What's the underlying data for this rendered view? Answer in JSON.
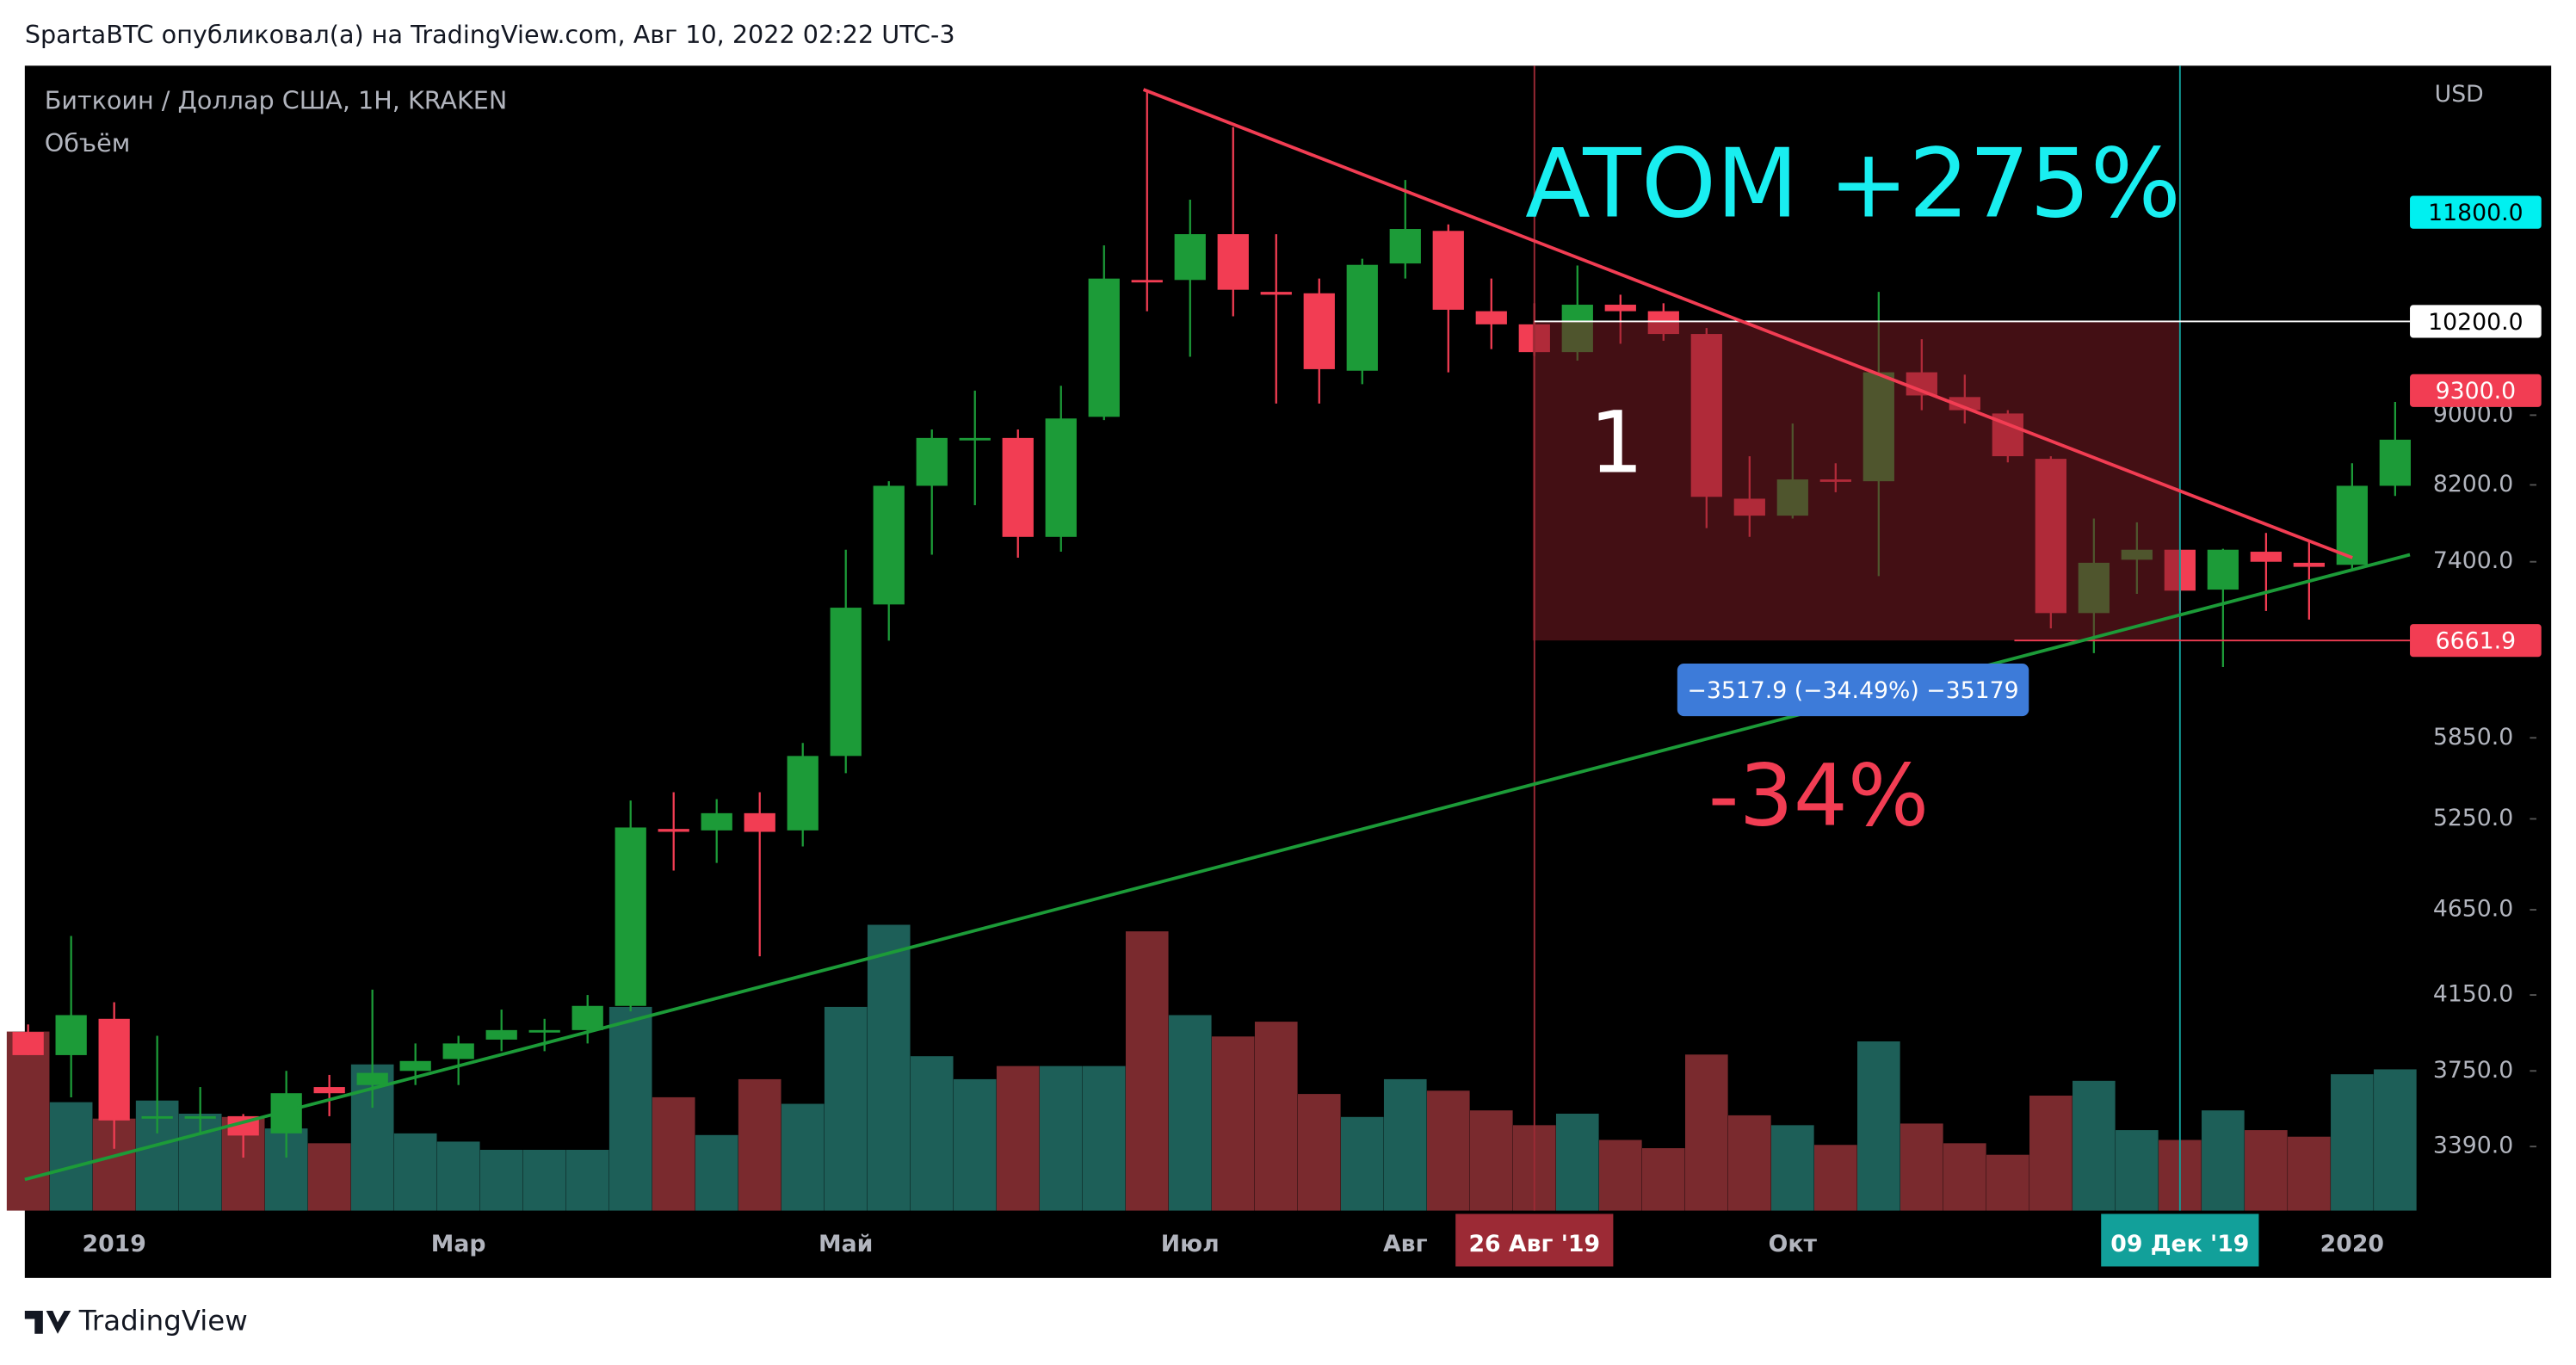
{
  "header": "SpartaBTC опубликовал(а) на TradingView.com, Авг 10, 2022 02:22 UTC-3",
  "footer": "TradingView",
  "chart_data": {
    "type": "candlestick",
    "title": "Биткоин / Доллар США, 1Н, KRAKEN",
    "volume_label": "Объём",
    "y_axis_label": "USD",
    "log_scale": true,
    "ylim": [
      3112,
      14350
    ],
    "yticks": [
      {
        "value": 3390,
        "label": "3390.0"
      },
      {
        "value": 3750,
        "label": "3750.0"
      },
      {
        "value": 4150,
        "label": "4150.0"
      },
      {
        "value": 4650,
        "label": "4650.0"
      },
      {
        "value": 5250,
        "label": "5250.0"
      },
      {
        "value": 5850,
        "label": "5850.0"
      },
      {
        "value": 7400,
        "label": "7400.0"
      },
      {
        "value": 8200,
        "label": "8200.0"
      },
      {
        "value": 9000,
        "label": "9000.0"
      }
    ],
    "categories": [
      null,
      null,
      "2019",
      null,
      null,
      null,
      null,
      null,
      null,
      null,
      "Мар",
      null,
      null,
      null,
      null,
      null,
      null,
      null,
      null,
      "Май",
      null,
      null,
      null,
      null,
      null,
      null,
      null,
      "Июл",
      null,
      null,
      null,
      null,
      "Авг",
      null,
      null,
      "26 Авг '19",
      null,
      null,
      null,
      null,
      null,
      "Окт",
      null,
      null,
      null,
      null,
      null,
      null,
      null,
      null,
      "09 Дек '19",
      null,
      null,
      null,
      "2020",
      null
    ],
    "category_highlights": {
      "35": "#9c2a35",
      "50": "#12a09a"
    },
    "up_color": "#1c9b38",
    "down_color": "#f23d53",
    "volume_up_color": "#1d5f58",
    "volume_down_color": "#7a2a2e",
    "open": [
      3950,
      3830,
      4020,
      3520,
      3530,
      3530,
      3450,
      3670,
      3680,
      3750,
      3810,
      3910,
      3950,
      3960,
      4090,
      5180,
      5170,
      5290,
      5170,
      5710,
      6990,
      8190,
      8730,
      8730,
      7650,
      8980,
      10780,
      10780,
      11460,
      10610,
      10590,
      9550,
      11020,
      11510,
      10340,
      10160,
      9790,
      10430,
      10340,
      10030,
      8050,
      7870,
      8260,
      8240,
      9530,
      9220,
      9020,
      8490,
      6910,
      7420,
      7520,
      7130,
      7500,
      7390,
      7370,
      8190
    ],
    "high": [
      3990,
      4490,
      4110,
      3930,
      3670,
      3540,
      3750,
      3730,
      4180,
      3890,
      3930,
      4070,
      4020,
      4150,
      5380,
      5440,
      5390,
      5440,
      5810,
      7520,
      8240,
      8830,
      9300,
      8830,
      9360,
      11290,
      13900,
      12000,
      13220,
      11460,
      10800,
      11090,
      12320,
      11610,
      10800,
      10450,
      10990,
      10570,
      10450,
      10110,
      8520,
      8900,
      8440,
      10610,
      9960,
      9500,
      9060,
      8520,
      7840,
      7800,
      7520,
      7530,
      7690,
      7610,
      8440,
      9160
    ],
    "low": [
      3830,
      3620,
      3380,
      3450,
      3450,
      3340,
      3340,
      3530,
      3570,
      3680,
      3680,
      3850,
      3850,
      3890,
      4060,
      4900,
      4950,
      4370,
      5060,
      5580,
      6660,
      7470,
      7980,
      7440,
      7500,
      8940,
      10340,
      9730,
      10270,
      9140,
      9140,
      9380,
      10800,
      9530,
      9830,
      9740,
      9680,
      9900,
      9940,
      7740,
      7650,
      7840,
      8120,
      7260,
      9060,
      8900,
      8450,
      6770,
      6550,
      7090,
      6930,
      6430,
      6930,
      6850,
      7330,
      8080
    ],
    "close": [
      3830,
      4040,
      3510,
      3530,
      3530,
      3440,
      3640,
      3640,
      3740,
      3800,
      3890,
      3960,
      3960,
      4090,
      5190,
      5160,
      5290,
      5160,
      5710,
      6960,
      8190,
      8730,
      8730,
      7650,
      8960,
      10800,
      10750,
      11460,
      10640,
      10570,
      9570,
      11000,
      11540,
      10360,
      10160,
      9790,
      10430,
      10340,
      10030,
      8070,
      7870,
      8260,
      8240,
      9530,
      9240,
      9060,
      8520,
      6910,
      7390,
      7520,
      7120,
      7520,
      7400,
      7350,
      8190,
      8710
    ],
    "volume": [
      109,
      66,
      56,
      67,
      59,
      57,
      50,
      41,
      89,
      47,
      42,
      37,
      37,
      37,
      124,
      69,
      46,
      80,
      65,
      124,
      174,
      94,
      80,
      88,
      88,
      88,
      170,
      119,
      106,
      115,
      71,
      57,
      80,
      73,
      61,
      52,
      59,
      43,
      38,
      95,
      58,
      52,
      40,
      103,
      53,
      41,
      34,
      70,
      79,
      49,
      43,
      61,
      49,
      45,
      83,
      86
    ],
    "price_labels": [
      {
        "value": 11800,
        "label": "11800.0",
        "color": "#00f0f0",
        "text_color": "#000000"
      },
      {
        "value": 10200,
        "label": "10200.0",
        "color": "#ffffff",
        "text_color": "#000000"
      },
      {
        "value": 9300,
        "label": "9300.0",
        "color": "#f23d53",
        "text_color": "#ffffff"
      },
      {
        "value": 6661.9,
        "label": "6661.9",
        "color": "#f23d53",
        "text_color": "#ffffff"
      }
    ],
    "trend_lines": [
      {
        "color": "#f23d53",
        "start": 13900,
        "end": 7440
      },
      {
        "color": "#1c9b38",
        "start": 3244,
        "end": 7470
      }
    ],
    "range_box": {
      "color": "#7a1c24",
      "label": "−3517.9 (−34.49%) −35179",
      "label_color": "#3d7bd9"
    },
    "annotations": [
      {
        "text": "ATOM +275%",
        "color": "#19eef0"
      },
      {
        "text": "1",
        "color": "#ffffff"
      },
      {
        "text": "-34%",
        "color": "#f23d53"
      }
    ]
  }
}
